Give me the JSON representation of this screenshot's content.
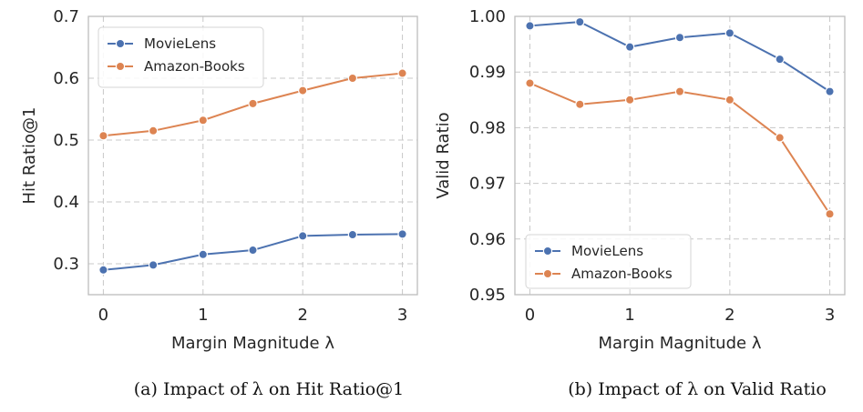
{
  "chart_data": [
    {
      "type": "line",
      "caption": "(a) Impact of λ on Hit Ratio@1",
      "xlabel": "Margin Magnitude λ",
      "ylabel": "Hit Ratio@1",
      "x": [
        0,
        0.5,
        1,
        1.5,
        2,
        2.5,
        3
      ],
      "xlim": [
        -0.15,
        3.15
      ],
      "ylim": [
        0.25,
        0.7
      ],
      "xticks": [
        0,
        1,
        2,
        3
      ],
      "xtick_labels": [
        "0",
        "1",
        "2",
        "3"
      ],
      "yticks": [
        0.3,
        0.4,
        0.5,
        0.6,
        0.7
      ],
      "ytick_labels": [
        "0.3",
        "0.4",
        "0.5",
        "0.6",
        "0.7"
      ],
      "grid": true,
      "legend_position": "top-left",
      "series": [
        {
          "name": "MovieLens",
          "color": "#4c72b0",
          "values": [
            0.29,
            0.298,
            0.315,
            0.322,
            0.345,
            0.347,
            0.348
          ]
        },
        {
          "name": "Amazon-Books",
          "color": "#dd8452",
          "values": [
            0.507,
            0.515,
            0.532,
            0.559,
            0.58,
            0.6,
            0.608
          ]
        }
      ]
    },
    {
      "type": "line",
      "caption": "(b) Impact of λ on Valid Ratio",
      "xlabel": "Margin Magnitude λ",
      "ylabel": "Valid Ratio",
      "x": [
        0,
        0.5,
        1,
        1.5,
        2,
        2.5,
        3
      ],
      "xlim": [
        -0.15,
        3.15
      ],
      "ylim": [
        0.95,
        1.0
      ],
      "xticks": [
        0,
        1,
        2,
        3
      ],
      "xtick_labels": [
        "0",
        "1",
        "2",
        "3"
      ],
      "yticks": [
        0.95,
        0.96,
        0.97,
        0.98,
        0.99,
        1.0
      ],
      "ytick_labels": [
        "0.95",
        "0.96",
        "0.97",
        "0.98",
        "0.99",
        "1.00"
      ],
      "grid": true,
      "legend_position": "bottom-left",
      "series": [
        {
          "name": "MovieLens",
          "color": "#4c72b0",
          "values": [
            0.9983,
            0.999,
            0.9945,
            0.9962,
            0.997,
            0.9923,
            0.9865
          ]
        },
        {
          "name": "Amazon-Books",
          "color": "#dd8452",
          "values": [
            0.988,
            0.9842,
            0.985,
            0.9865,
            0.985,
            0.9782,
            0.9645
          ]
        }
      ]
    }
  ]
}
